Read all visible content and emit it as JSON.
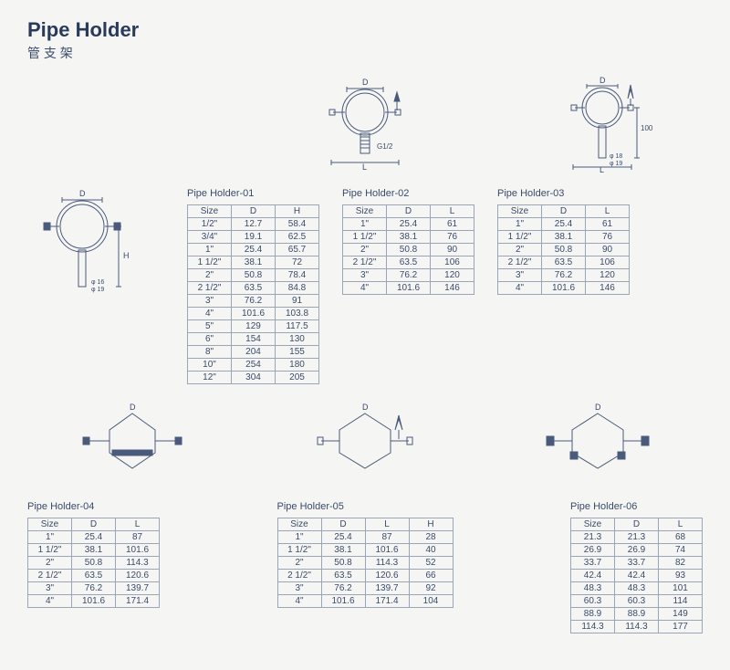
{
  "title_en": "Pipe Holder",
  "title_cn": "管 支 架",
  "colors": {
    "background": "#f5f6f4",
    "text": "#3a4a6a",
    "border": "#9aa5b8",
    "stroke": "#4a5a7a"
  },
  "fonts": {
    "title_size": 22,
    "subtitle_size": 14,
    "label_size": 11,
    "table_size": 10
  },
  "diagram_labels": {
    "d": "D",
    "l": "L",
    "h": "H",
    "g12": "G1/2",
    "phi16": "φ 16",
    "phi19": "φ 19",
    "phi18": "φ 18",
    "h100": "100"
  },
  "tables": {
    "ph01": {
      "title": "Pipe Holder-01",
      "columns": [
        "Size",
        "D",
        "H"
      ],
      "rows": [
        [
          "1/2\"",
          "12.7",
          "58.4"
        ],
        [
          "3/4\"",
          "19.1",
          "62.5"
        ],
        [
          "1\"",
          "25.4",
          "65.7"
        ],
        [
          "1 1/2\"",
          "38.1",
          "72"
        ],
        [
          "2\"",
          "50.8",
          "78.4"
        ],
        [
          "2 1/2\"",
          "63.5",
          "84.8"
        ],
        [
          "3\"",
          "76.2",
          "91"
        ],
        [
          "4\"",
          "101.6",
          "103.8"
        ],
        [
          "5\"",
          "129",
          "117.5"
        ],
        [
          "6\"",
          "154",
          "130"
        ],
        [
          "8\"",
          "204",
          "155"
        ],
        [
          "10\"",
          "254",
          "180"
        ],
        [
          "12\"",
          "304",
          "205"
        ]
      ]
    },
    "ph02": {
      "title": "Pipe Holder-02",
      "columns": [
        "Size",
        "D",
        "L"
      ],
      "rows": [
        [
          "1\"",
          "25.4",
          "61"
        ],
        [
          "1 1/2\"",
          "38.1",
          "76"
        ],
        [
          "2\"",
          "50.8",
          "90"
        ],
        [
          "2 1/2\"",
          "63.5",
          "106"
        ],
        [
          "3\"",
          "76.2",
          "120"
        ],
        [
          "4\"",
          "101.6",
          "146"
        ]
      ]
    },
    "ph03": {
      "title": "Pipe Holder-03",
      "columns": [
        "Size",
        "D",
        "L"
      ],
      "rows": [
        [
          "1\"",
          "25.4",
          "61"
        ],
        [
          "1 1/2\"",
          "38.1",
          "76"
        ],
        [
          "2\"",
          "50.8",
          "90"
        ],
        [
          "2 1/2\"",
          "63.5",
          "106"
        ],
        [
          "3\"",
          "76.2",
          "120"
        ],
        [
          "4\"",
          "101.6",
          "146"
        ]
      ]
    },
    "ph04": {
      "title": "Pipe Holder-04",
      "columns": [
        "Size",
        "D",
        "L"
      ],
      "rows": [
        [
          "1\"",
          "25.4",
          "87"
        ],
        [
          "1 1/2\"",
          "38.1",
          "101.6"
        ],
        [
          "2\"",
          "50.8",
          "114.3"
        ],
        [
          "2 1/2\"",
          "63.5",
          "120.6"
        ],
        [
          "3\"",
          "76.2",
          "139.7"
        ],
        [
          "4\"",
          "101.6",
          "171.4"
        ]
      ]
    },
    "ph05": {
      "title": "Pipe Holder-05",
      "columns": [
        "Size",
        "D",
        "L",
        "H"
      ],
      "rows": [
        [
          "1\"",
          "25.4",
          "87",
          "28"
        ],
        [
          "1 1/2\"",
          "38.1",
          "101.6",
          "40"
        ],
        [
          "2\"",
          "50.8",
          "114.3",
          "52"
        ],
        [
          "2 1/2\"",
          "63.5",
          "120.6",
          "66"
        ],
        [
          "3\"",
          "76.2",
          "139.7",
          "92"
        ],
        [
          "4\"",
          "101.6",
          "171.4",
          "104"
        ]
      ]
    },
    "ph06": {
      "title": "Pipe Holder-06",
      "columns": [
        "Size",
        "D",
        "L"
      ],
      "rows": [
        [
          "21.3",
          "21.3",
          "68"
        ],
        [
          "26.9",
          "26.9",
          "74"
        ],
        [
          "33.7",
          "33.7",
          "82"
        ],
        [
          "42.4",
          "42.4",
          "93"
        ],
        [
          "48.3",
          "48.3",
          "101"
        ],
        [
          "60.3",
          "60.3",
          "114"
        ],
        [
          "88.9",
          "88.9",
          "149"
        ],
        [
          "114.3",
          "114.3",
          "177"
        ]
      ]
    }
  }
}
